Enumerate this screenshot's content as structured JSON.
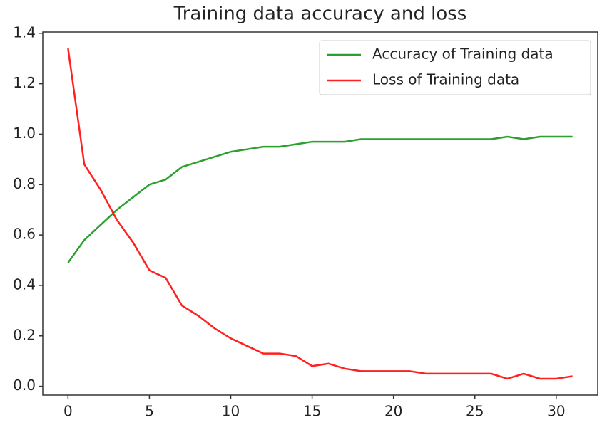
{
  "chart_data": {
    "type": "line",
    "title": "Training data accuracy and loss",
    "x": [
      0,
      1,
      2,
      3,
      4,
      5,
      6,
      7,
      8,
      9,
      10,
      11,
      12,
      13,
      14,
      15,
      16,
      17,
      18,
      19,
      20,
      21,
      22,
      23,
      24,
      25,
      26,
      27,
      28,
      29,
      30,
      31
    ],
    "series": [
      {
        "name": "Accuracy of Training data",
        "color": "#2ca02c",
        "values": [
          0.49,
          0.58,
          0.64,
          0.7,
          0.75,
          0.8,
          0.82,
          0.87,
          0.89,
          0.91,
          0.93,
          0.94,
          0.95,
          0.95,
          0.96,
          0.97,
          0.97,
          0.97,
          0.98,
          0.98,
          0.98,
          0.98,
          0.98,
          0.98,
          0.98,
          0.98,
          0.98,
          0.99,
          0.98,
          0.99,
          0.99,
          0.99
        ]
      },
      {
        "name": "Loss of Training data",
        "color": "#ff2020",
        "values": [
          1.34,
          0.88,
          0.78,
          0.66,
          0.57,
          0.46,
          0.43,
          0.32,
          0.28,
          0.23,
          0.19,
          0.16,
          0.13,
          0.13,
          0.12,
          0.08,
          0.09,
          0.07,
          0.06,
          0.06,
          0.06,
          0.06,
          0.05,
          0.05,
          0.05,
          0.05,
          0.05,
          0.03,
          0.05,
          0.03,
          0.03,
          0.04
        ]
      }
    ],
    "xlim": [
      -1.55,
      32.55
    ],
    "xticks": [
      0,
      5,
      10,
      15,
      20,
      25,
      30
    ],
    "ylim": [
      -0.035,
      1.405
    ],
    "yticks": [
      {
        "value": 0,
        "label": "0.0"
      },
      {
        "value": 0.2,
        "label": "0.2"
      },
      {
        "value": 0.4,
        "label": "0.4"
      },
      {
        "value": 0.6,
        "label": "0.6"
      },
      {
        "value": 0.8,
        "label": "0.8"
      },
      {
        "value": 1,
        "label": "1.0"
      },
      {
        "value": 1.2,
        "label": "1.2"
      },
      {
        "value": 1.4,
        "label": "1.4"
      }
    ],
    "legend": "upper right"
  }
}
